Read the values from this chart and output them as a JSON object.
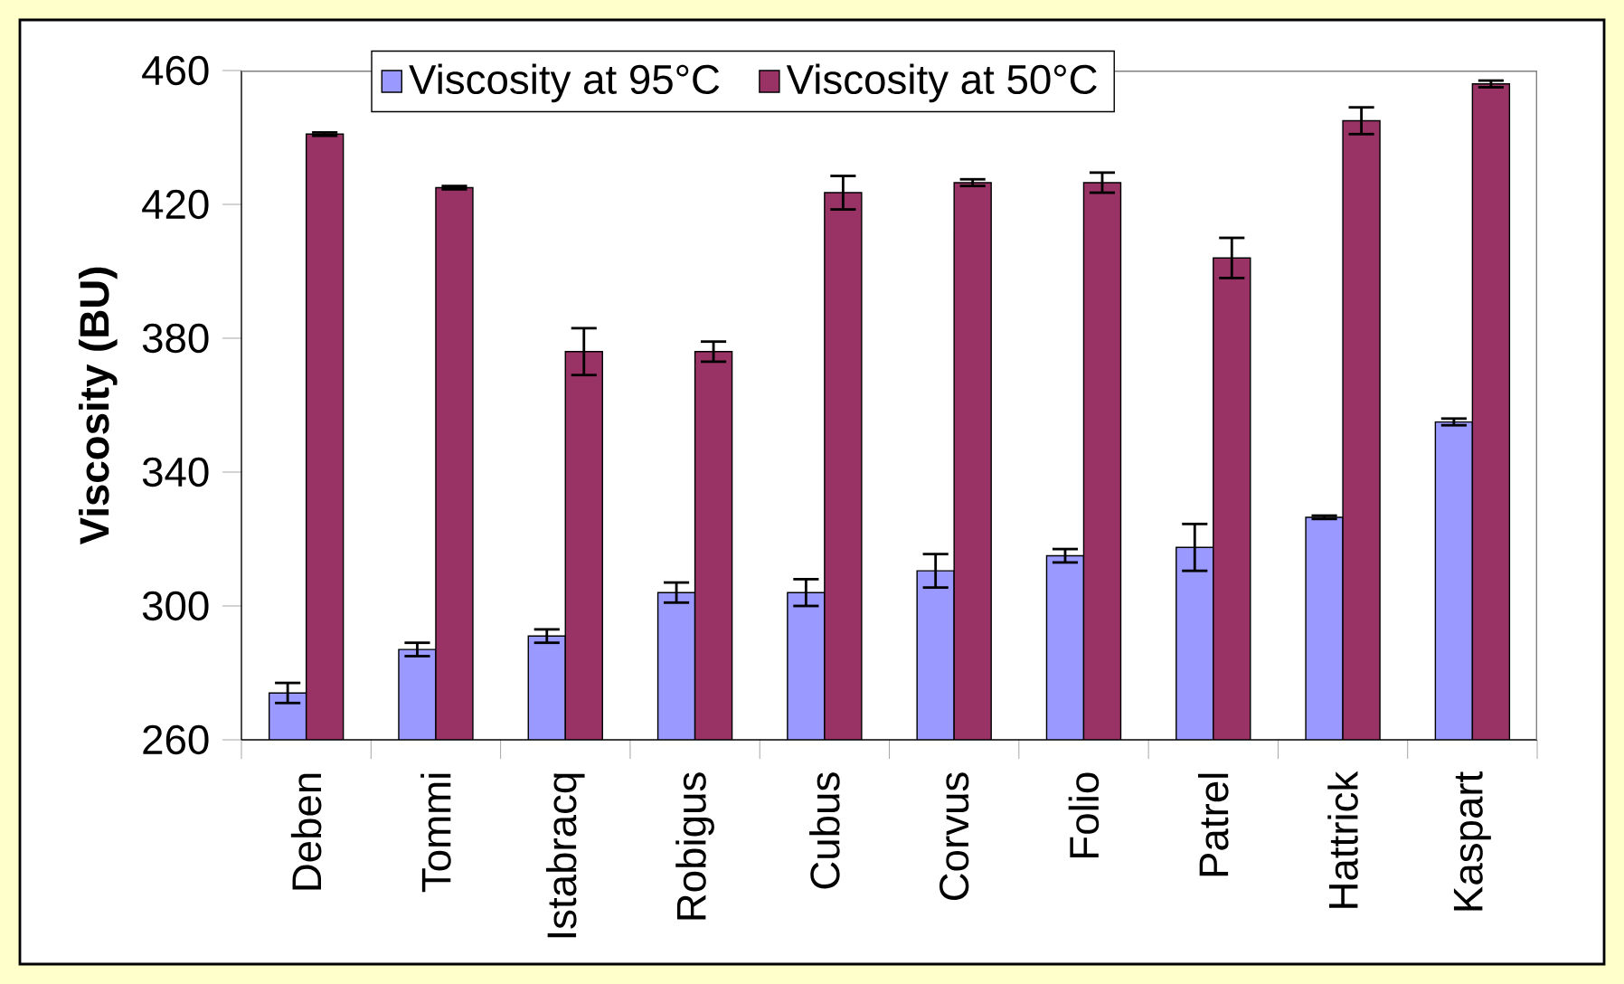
{
  "chart_data": {
    "type": "bar",
    "ylabel": "Viscosity (BU)",
    "categories": [
      "Deben",
      "Tommi",
      "Istabracq",
      "Robigus",
      "Cubus",
      "Corvus",
      "Folio",
      "Patrel",
      "Hattrick",
      "Kaspart"
    ],
    "series": [
      {
        "name": "Viscosity at 95°C",
        "color": "#9999ff",
        "values": [
          274,
          287,
          291,
          304,
          304,
          310.5,
          315,
          317.5,
          326.5,
          355
        ],
        "errors": [
          3,
          2,
          2,
          3,
          4,
          5,
          2,
          7,
          0.5,
          1
        ]
      },
      {
        "name": "Viscosity at 50°C",
        "color": "#993366",
        "values": [
          441,
          425,
          376,
          376,
          423.5,
          426.5,
          426.5,
          404,
          445,
          456
        ],
        "errors": [
          0.5,
          0.5,
          7,
          3,
          5,
          1,
          3,
          6,
          4,
          1
        ]
      }
    ],
    "ylim": [
      260,
      460
    ],
    "yticks": [
      260,
      300,
      340,
      380,
      420,
      460
    ],
    "legend": "top left"
  }
}
